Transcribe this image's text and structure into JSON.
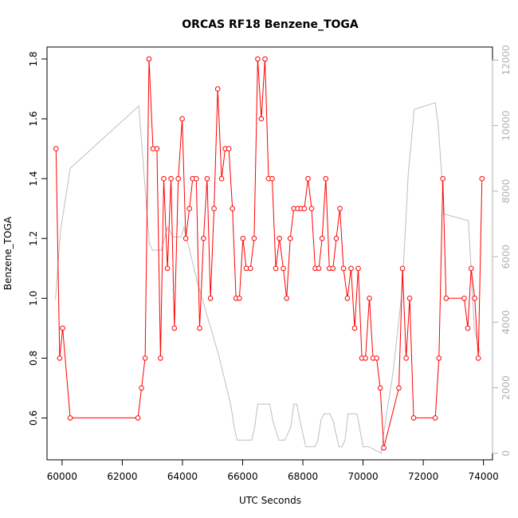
{
  "chart_data": {
    "type": "line",
    "title": "ORCAS RF18 Benzene_TOGA",
    "xlabel": "UTC Seconds",
    "ylabel": "Benzene_TOGA",
    "xlim": [
      59500,
      74300
    ],
    "ylim": [
      0.46,
      1.84
    ],
    "ylim_right": [
      -200,
      12400
    ],
    "x_ticks": [
      60000,
      62000,
      64000,
      66000,
      68000,
      70000,
      72000,
      74000
    ],
    "x_tick_labels": [
      "60000",
      "62000",
      "64000",
      "66000",
      "68000",
      "70000",
      "72000",
      "74000"
    ],
    "y_ticks": [
      0.6,
      0.8,
      1.0,
      1.2,
      1.4,
      1.6,
      1.8
    ],
    "y_tick_labels": [
      "0.6",
      "0.8",
      "1.0",
      "1.2",
      "1.4",
      "1.6",
      "1.8"
    ],
    "y2_ticks": [
      0,
      2000,
      4000,
      6000,
      8000,
      10000,
      12000
    ],
    "y2_tick_labels": [
      "0",
      "2000",
      "4000",
      "6000",
      "8000",
      "10000",
      "12000"
    ],
    "grid": false,
    "series": [
      {
        "color": "#ff0000",
        "marker": "open-circle",
        "axis": "left",
        "x": [
          59800,
          59920,
          60020,
          60270,
          62520,
          62640,
          62760,
          62890,
          63020,
          63150,
          63270,
          63380,
          63500,
          63620,
          63730,
          63860,
          63990,
          64110,
          64230,
          64340,
          64460,
          64570,
          64700,
          64820,
          64930,
          65050,
          65170,
          65300,
          65420,
          65540,
          65660,
          65780,
          65890,
          66010,
          66120,
          66260,
          66380,
          66500,
          66620,
          66740,
          66860,
          66980,
          67100,
          67220,
          67350,
          67460,
          67580,
          67700,
          67830,
          67940,
          68050,
          68170,
          68290,
          68410,
          68530,
          68640,
          68760,
          68880,
          69000,
          69110,
          69230,
          69350,
          69480,
          69600,
          69720,
          69840,
          69960,
          70080,
          70210,
          70330,
          70450,
          70570,
          70690,
          71190,
          71310,
          71430,
          71550,
          71680,
          72400,
          72520,
          72650,
          72760,
          73360,
          73480,
          73590,
          73710,
          73830,
          73950
        ],
        "y": [
          1.5,
          0.8,
          0.9,
          0.6,
          0.6,
          0.7,
          0.8,
          1.8,
          1.5,
          1.5,
          0.8,
          1.4,
          1.1,
          1.4,
          0.9,
          1.4,
          1.6,
          1.2,
          1.3,
          1.4,
          1.4,
          0.9,
          1.2,
          1.4,
          1.0,
          1.3,
          1.7,
          1.4,
          1.5,
          1.5,
          1.3,
          1.0,
          1.0,
          1.2,
          1.1,
          1.1,
          1.2,
          1.8,
          1.6,
          1.8,
          1.4,
          1.4,
          1.1,
          1.2,
          1.1,
          1.0,
          1.2,
          1.3,
          1.3,
          1.3,
          1.3,
          1.4,
          1.3,
          1.1,
          1.1,
          1.2,
          1.4,
          1.1,
          1.1,
          1.2,
          1.3,
          1.1,
          1.0,
          1.1,
          0.9,
          1.1,
          0.8,
          0.8,
          1.0,
          0.8,
          0.8,
          0.7,
          0.5,
          0.7,
          1.1,
          0.8,
          1.0,
          0.6,
          0.6,
          0.8,
          1.4,
          1.0,
          1.0,
          0.9,
          1.1,
          1.0,
          0.8,
          1.4
        ]
      },
      {
        "color": "#bebebe",
        "marker": "none",
        "axis": "right",
        "x": [
          59780,
          59950,
          60270,
          62550,
          62900,
          63000,
          63300,
          63500,
          63700,
          63950,
          64050,
          64500,
          65200,
          65600,
          65720,
          65820,
          66000,
          66300,
          66400,
          66500,
          66900,
          67000,
          67200,
          67400,
          67600,
          67700,
          67800,
          67900,
          68100,
          68250,
          68400,
          68500,
          68600,
          68700,
          68800,
          68900,
          69000,
          69200,
          69300,
          69400,
          69500,
          69700,
          69800,
          70000,
          70200,
          70400,
          70600,
          70700,
          71000,
          71300,
          71500,
          71700,
          72400,
          72500,
          72700,
          73500,
          73700,
          73900
        ],
        "y": [
          4700,
          6800,
          8700,
          10600,
          6400,
          6200,
          6200,
          6900,
          6600,
          6600,
          6900,
          5200,
          3000,
          1500,
          800,
          400,
          400,
          400,
          800,
          1500,
          1500,
          1000,
          400,
          400,
          800,
          1500,
          1500,
          1000,
          200,
          200,
          200,
          400,
          1000,
          1200,
          1200,
          1200,
          1000,
          200,
          200,
          400,
          1200,
          1200,
          1200,
          200,
          200,
          100,
          0,
          700,
          2500,
          5000,
          8500,
          10500,
          10700,
          10000,
          7300,
          7100,
          3800,
          3000
        ]
      }
    ]
  }
}
